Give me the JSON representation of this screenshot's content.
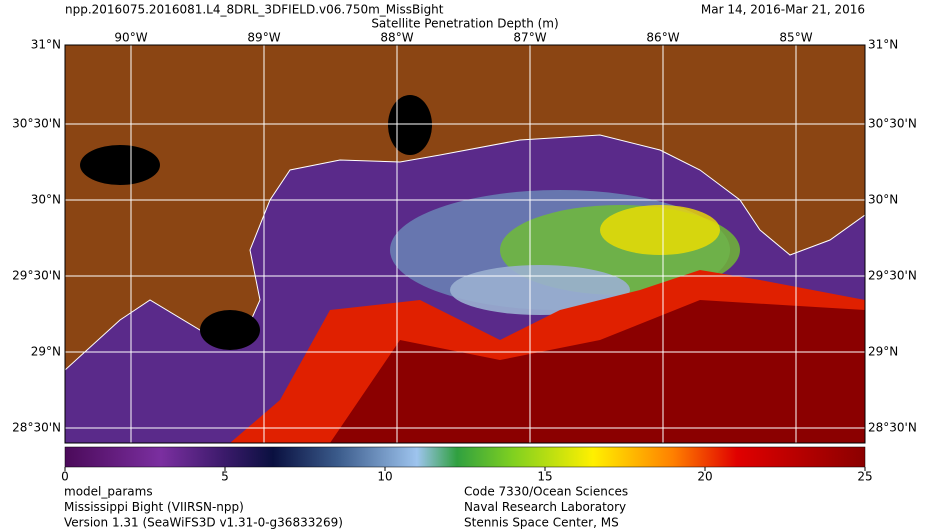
{
  "header": {
    "title": "npp.2016075.2016081.L4_8DRL_3DFIELD.v06.750m_MissBight",
    "date_range": "Mar 14, 2016-Mar 21, 2016",
    "subtitle": "Satellite Penetration Depth (m)"
  },
  "map": {
    "longitude_labels": [
      "90°W",
      "89°W",
      "88°W",
      "87°W",
      "86°W",
      "85°W"
    ],
    "latitude_labels": [
      "31°N",
      "30°30'N",
      "30°N",
      "29°30'N",
      "29°N",
      "28°30'N"
    ]
  },
  "colorbar": {
    "lim": [
      0,
      25
    ],
    "ticks": [
      0,
      5,
      10,
      15,
      20,
      25
    ]
  },
  "footer": {
    "left": [
      "model_params",
      "Mississippi Bight (VIIRSN-npp)",
      "Version 1.31 (SeaWiFS3D v1.31-0-g36833269)"
    ],
    "right": [
      "Code 7330/Ocean Sciences",
      "Naval Research Laboratory",
      "Stennis Space Center, MS"
    ]
  }
}
